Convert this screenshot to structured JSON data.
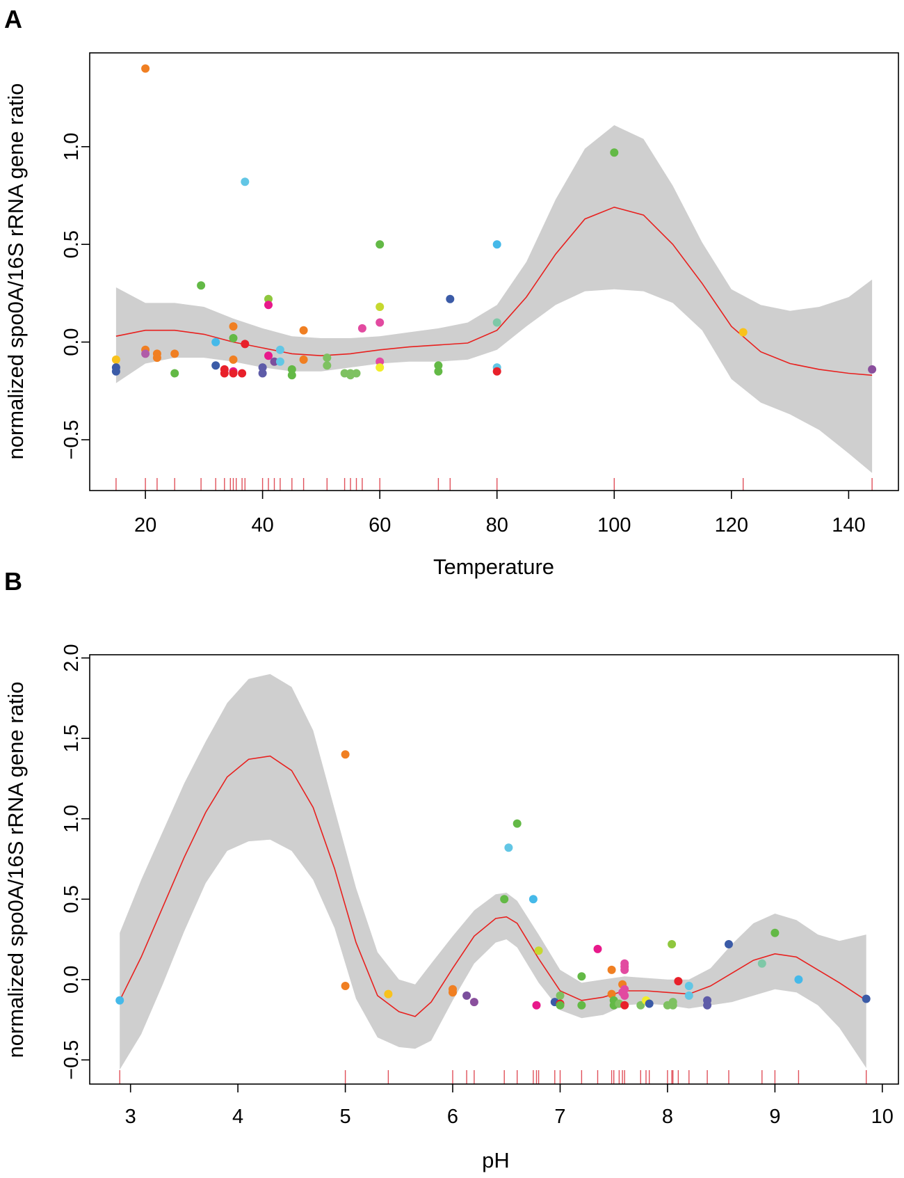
{
  "chart_data": [
    {
      "type": "scatter",
      "panel_label": "A",
      "xlabel": "Temperature",
      "ylabel": "normalized spo0A/16S rRNA gene ratio",
      "xlim": [
        10.5,
        148.5
      ],
      "ylim": [
        -0.76,
        1.48
      ],
      "x_ticks": [
        20,
        40,
        60,
        80,
        100,
        120,
        140
      ],
      "y_ticks": [
        -0.5,
        0.0,
        0.5,
        1.0
      ],
      "x_tick_labels": [
        "20",
        "40",
        "60",
        "80",
        "100",
        "120",
        "140"
      ],
      "y_tick_labels": [
        "−0.5",
        "0.0",
        "0.5",
        "1.0"
      ],
      "smooth_fit": {
        "x": [
          15,
          20,
          25,
          30,
          35,
          40,
          45,
          50,
          55,
          60,
          65,
          70,
          75,
          80,
          85,
          90,
          95,
          100,
          105,
          110,
          115,
          120,
          125,
          130,
          135,
          140,
          144
        ],
        "y": [
          0.03,
          0.06,
          0.06,
          0.04,
          0.0,
          -0.03,
          -0.06,
          -0.07,
          -0.06,
          -0.04,
          -0.025,
          -0.015,
          -0.005,
          0.06,
          0.23,
          0.45,
          0.63,
          0.69,
          0.65,
          0.5,
          0.3,
          0.08,
          -0.05,
          -0.11,
          -0.14,
          -0.16,
          -0.17
        ],
        "lower": [
          -0.21,
          -0.11,
          -0.08,
          -0.08,
          -0.1,
          -0.13,
          -0.15,
          -0.15,
          -0.13,
          -0.11,
          -0.1,
          -0.1,
          -0.09,
          -0.04,
          0.08,
          0.19,
          0.26,
          0.27,
          0.26,
          0.2,
          0.06,
          -0.19,
          -0.31,
          -0.37,
          -0.45,
          -0.57,
          -0.67
        ],
        "upper": [
          0.28,
          0.2,
          0.2,
          0.18,
          0.12,
          0.07,
          0.03,
          0.02,
          0.02,
          0.03,
          0.05,
          0.07,
          0.1,
          0.19,
          0.41,
          0.73,
          0.99,
          1.11,
          1.04,
          0.8,
          0.51,
          0.27,
          0.19,
          0.16,
          0.18,
          0.23,
          0.32
        ]
      },
      "points": [
        {
          "x": 15,
          "y": -0.09,
          "color": "#f8c21c"
        },
        {
          "x": 15,
          "y": -0.13,
          "color": "#3b5ba7"
        },
        {
          "x": 15,
          "y": -0.15,
          "color": "#3b5ba7"
        },
        {
          "x": 20,
          "y": 1.4,
          "color": "#f07f22"
        },
        {
          "x": 20,
          "y": -0.04,
          "color": "#f07f22"
        },
        {
          "x": 20,
          "y": -0.06,
          "color": "#b05ca8"
        },
        {
          "x": 22,
          "y": -0.06,
          "color": "#f07f22"
        },
        {
          "x": 22,
          "y": -0.08,
          "color": "#f07f22"
        },
        {
          "x": 25,
          "y": -0.16,
          "color": "#63b946"
        },
        {
          "x": 25,
          "y": -0.06,
          "color": "#f07f22"
        },
        {
          "x": 29.5,
          "y": 0.29,
          "color": "#63b946"
        },
        {
          "x": 32,
          "y": 0.0,
          "color": "#45b9e9"
        },
        {
          "x": 32,
          "y": -0.12,
          "color": "#3b5ba7"
        },
        {
          "x": 33.5,
          "y": -0.14,
          "color": "#e8202a"
        },
        {
          "x": 33.5,
          "y": -0.16,
          "color": "#e8202a"
        },
        {
          "x": 35,
          "y": 0.08,
          "color": "#f07f22"
        },
        {
          "x": 35,
          "y": 0.02,
          "color": "#63b946"
        },
        {
          "x": 35,
          "y": -0.09,
          "color": "#f07f22"
        },
        {
          "x": 35,
          "y": -0.15,
          "color": "#e8198b"
        },
        {
          "x": 35,
          "y": -0.16,
          "color": "#e8202a"
        },
        {
          "x": 36.5,
          "y": -0.16,
          "color": "#e8202a"
        },
        {
          "x": 37,
          "y": 0.82,
          "color": "#62c6e5"
        },
        {
          "x": 37,
          "y": -0.01,
          "color": "#e8202a"
        },
        {
          "x": 40,
          "y": -0.13,
          "color": "#5e5ca8"
        },
        {
          "x": 40,
          "y": -0.16,
          "color": "#5e5ca8"
        },
        {
          "x": 41,
          "y": 0.22,
          "color": "#8fc73e"
        },
        {
          "x": 41,
          "y": 0.19,
          "color": "#e8198b"
        },
        {
          "x": 41,
          "y": -0.07,
          "color": "#e8198b"
        },
        {
          "x": 42,
          "y": -0.1,
          "color": "#7b4f9d"
        },
        {
          "x": 43,
          "y": -0.04,
          "color": "#62c6e5"
        },
        {
          "x": 43,
          "y": -0.1,
          "color": "#62c6e5"
        },
        {
          "x": 45,
          "y": -0.14,
          "color": "#63b946"
        },
        {
          "x": 45,
          "y": -0.17,
          "color": "#63b946"
        },
        {
          "x": 47,
          "y": 0.06,
          "color": "#f07f22"
        },
        {
          "x": 47,
          "y": -0.09,
          "color": "#f07f22"
        },
        {
          "x": 51,
          "y": -0.08,
          "color": "#7ec161"
        },
        {
          "x": 51,
          "y": -0.12,
          "color": "#7ec161"
        },
        {
          "x": 54,
          "y": -0.16,
          "color": "#7ec161"
        },
        {
          "x": 55,
          "y": -0.16,
          "color": "#7ec161"
        },
        {
          "x": 55,
          "y": -0.17,
          "color": "#7ec161"
        },
        {
          "x": 56,
          "y": -0.16,
          "color": "#7ec161"
        },
        {
          "x": 57,
          "y": 0.07,
          "color": "#e24aa0"
        },
        {
          "x": 60,
          "y": 0.5,
          "color": "#63b946"
        },
        {
          "x": 60,
          "y": 0.18,
          "color": "#c6d82f"
        },
        {
          "x": 60,
          "y": 0.1,
          "color": "#e24aa0"
        },
        {
          "x": 60,
          "y": -0.1,
          "color": "#e24aa0"
        },
        {
          "x": 60,
          "y": -0.13,
          "color": "#f2ed2a"
        },
        {
          "x": 70,
          "y": -0.12,
          "color": "#63b946"
        },
        {
          "x": 70,
          "y": -0.15,
          "color": "#63b946"
        },
        {
          "x": 72,
          "y": 0.22,
          "color": "#3b5ba7"
        },
        {
          "x": 80,
          "y": 0.5,
          "color": "#45b9e9"
        },
        {
          "x": 80,
          "y": 0.1,
          "color": "#7ec8a7"
        },
        {
          "x": 80,
          "y": -0.13,
          "color": "#62c6e5"
        },
        {
          "x": 80,
          "y": -0.15,
          "color": "#e8202a"
        },
        {
          "x": 100,
          "y": 0.97,
          "color": "#63b946"
        },
        {
          "x": 122,
          "y": 0.05,
          "color": "#f8c21c"
        },
        {
          "x": 144,
          "y": -0.14,
          "color": "#8a4f9d"
        }
      ],
      "rug_x": [
        15,
        20,
        22,
        25,
        29.5,
        32,
        33.5,
        34.5,
        35,
        35.5,
        36.5,
        37,
        40,
        41,
        42,
        43,
        45,
        47,
        51,
        54,
        55,
        56,
        57,
        60,
        70,
        72,
        80,
        100,
        122,
        144
      ]
    },
    {
      "type": "scatter",
      "panel_label": "B",
      "xlabel": "pH",
      "ylabel": "normalized spo0A/16S rRNA gene ratio",
      "xlim": [
        2.62,
        10.15
      ],
      "ylim": [
        -0.65,
        2.02
      ],
      "x_ticks": [
        3,
        4,
        5,
        6,
        7,
        8,
        9,
        10
      ],
      "y_ticks": [
        -0.5,
        0.0,
        0.5,
        1.0,
        1.5,
        2.0
      ],
      "x_tick_labels": [
        "3",
        "4",
        "5",
        "6",
        "7",
        "8",
        "9",
        "10"
      ],
      "y_tick_labels": [
        "−0.5",
        "0.0",
        "0.5",
        "1.0",
        "1.5",
        "2.0"
      ],
      "smooth_fit": {
        "x": [
          2.9,
          3.1,
          3.3,
          3.5,
          3.7,
          3.9,
          4.1,
          4.3,
          4.5,
          4.7,
          4.9,
          5.1,
          5.3,
          5.5,
          5.65,
          5.8,
          6.0,
          6.2,
          6.4,
          6.5,
          6.6,
          6.8,
          7.0,
          7.2,
          7.4,
          7.6,
          7.8,
          8.0,
          8.2,
          8.4,
          8.6,
          8.8,
          9.0,
          9.2,
          9.4,
          9.6,
          9.85
        ],
        "y": [
          -0.13,
          0.14,
          0.45,
          0.76,
          1.04,
          1.26,
          1.37,
          1.39,
          1.3,
          1.07,
          0.69,
          0.23,
          -0.1,
          -0.2,
          -0.23,
          -0.14,
          0.07,
          0.27,
          0.38,
          0.39,
          0.35,
          0.13,
          -0.07,
          -0.13,
          -0.11,
          -0.07,
          -0.07,
          -0.08,
          -0.09,
          -0.04,
          0.04,
          0.12,
          0.16,
          0.14,
          0.06,
          -0.02,
          -0.13
        ],
        "lower": [
          -0.56,
          -0.34,
          -0.03,
          0.3,
          0.6,
          0.8,
          0.86,
          0.87,
          0.8,
          0.62,
          0.32,
          -0.12,
          -0.36,
          -0.42,
          -0.43,
          -0.38,
          -0.13,
          0.1,
          0.23,
          0.25,
          0.2,
          -0.02,
          -0.19,
          -0.24,
          -0.22,
          -0.16,
          -0.15,
          -0.16,
          -0.18,
          -0.16,
          -0.14,
          -0.1,
          -0.06,
          -0.08,
          -0.16,
          -0.3,
          -0.55
        ],
        "upper": [
          0.29,
          0.62,
          0.92,
          1.22,
          1.48,
          1.72,
          1.87,
          1.9,
          1.82,
          1.55,
          1.06,
          0.57,
          0.17,
          0.0,
          -0.03,
          0.1,
          0.27,
          0.43,
          0.53,
          0.54,
          0.49,
          0.28,
          0.06,
          -0.02,
          0.0,
          0.02,
          0.01,
          0.0,
          0.0,
          0.07,
          0.22,
          0.35,
          0.41,
          0.37,
          0.28,
          0.24,
          0.28
        ]
      },
      "points": [
        {
          "x": 2.9,
          "y": -0.13,
          "color": "#45b9e9"
        },
        {
          "x": 5.0,
          "y": 1.4,
          "color": "#f07f22"
        },
        {
          "x": 5.0,
          "y": -0.04,
          "color": "#f07f22"
        },
        {
          "x": 5.4,
          "y": -0.09,
          "color": "#f8c21c"
        },
        {
          "x": 6.0,
          "y": -0.06,
          "color": "#f07f22"
        },
        {
          "x": 6.0,
          "y": -0.08,
          "color": "#f07f22"
        },
        {
          "x": 6.13,
          "y": -0.1,
          "color": "#7b4f9d"
        },
        {
          "x": 6.2,
          "y": -0.14,
          "color": "#8a4f9d"
        },
        {
          "x": 6.48,
          "y": 0.5,
          "color": "#63b946"
        },
        {
          "x": 6.52,
          "y": 0.82,
          "color": "#62c6e5"
        },
        {
          "x": 6.6,
          "y": 0.97,
          "color": "#63b946"
        },
        {
          "x": 6.75,
          "y": 0.5,
          "color": "#45b9e9"
        },
        {
          "x": 6.78,
          "y": -0.16,
          "color": "#e8198b"
        },
        {
          "x": 6.8,
          "y": 0.18,
          "color": "#c6d82f"
        },
        {
          "x": 6.95,
          "y": -0.14,
          "color": "#3b5ba7"
        },
        {
          "x": 7.0,
          "y": -0.1,
          "color": "#7ec161"
        },
        {
          "x": 7.0,
          "y": -0.15,
          "color": "#e8202a"
        },
        {
          "x": 7.0,
          "y": -0.16,
          "color": "#63b946"
        },
        {
          "x": 7.2,
          "y": 0.02,
          "color": "#63b946"
        },
        {
          "x": 7.2,
          "y": -0.16,
          "color": "#63b946"
        },
        {
          "x": 7.35,
          "y": 0.19,
          "color": "#e8198b"
        },
        {
          "x": 7.48,
          "y": 0.06,
          "color": "#f07f22"
        },
        {
          "x": 7.48,
          "y": -0.09,
          "color": "#f07f22"
        },
        {
          "x": 7.5,
          "y": -0.13,
          "color": "#63b946"
        },
        {
          "x": 7.5,
          "y": -0.16,
          "color": "#63b946"
        },
        {
          "x": 7.55,
          "y": -0.15,
          "color": "#7ec161"
        },
        {
          "x": 7.58,
          "y": -0.03,
          "color": "#f07f22"
        },
        {
          "x": 7.58,
          "y": -0.08,
          "color": "#e24aa0"
        },
        {
          "x": 7.6,
          "y": 0.1,
          "color": "#e24aa0"
        },
        {
          "x": 7.6,
          "y": 0.08,
          "color": "#e24aa0"
        },
        {
          "x": 7.6,
          "y": 0.06,
          "color": "#e24aa0"
        },
        {
          "x": 7.6,
          "y": -0.06,
          "color": "#e24aa0"
        },
        {
          "x": 7.6,
          "y": -0.1,
          "color": "#e24aa0"
        },
        {
          "x": 7.6,
          "y": -0.16,
          "color": "#e8202a"
        },
        {
          "x": 7.75,
          "y": -0.16,
          "color": "#7ec161"
        },
        {
          "x": 7.8,
          "y": -0.13,
          "color": "#f2ed2a"
        },
        {
          "x": 7.83,
          "y": -0.15,
          "color": "#3b5ba7"
        },
        {
          "x": 8.0,
          "y": -0.16,
          "color": "#7ec161"
        },
        {
          "x": 8.04,
          "y": 0.22,
          "color": "#8fc73e"
        },
        {
          "x": 8.05,
          "y": -0.14,
          "color": "#7ec161"
        },
        {
          "x": 8.05,
          "y": -0.16,
          "color": "#7ec161"
        },
        {
          "x": 8.1,
          "y": -0.01,
          "color": "#e8202a"
        },
        {
          "x": 8.2,
          "y": -0.04,
          "color": "#62c6e5"
        },
        {
          "x": 8.2,
          "y": -0.1,
          "color": "#62c6e5"
        },
        {
          "x": 8.37,
          "y": -0.13,
          "color": "#5e5ca8"
        },
        {
          "x": 8.37,
          "y": -0.16,
          "color": "#5e5ca8"
        },
        {
          "x": 8.57,
          "y": 0.22,
          "color": "#3b5ba7"
        },
        {
          "x": 8.88,
          "y": 0.1,
          "color": "#7ec8a7"
        },
        {
          "x": 9.0,
          "y": 0.29,
          "color": "#63b946"
        },
        {
          "x": 9.22,
          "y": 0.0,
          "color": "#45b9e9"
        },
        {
          "x": 9.85,
          "y": -0.12,
          "color": "#3b5ba7"
        }
      ],
      "rug_x": [
        2.9,
        5.0,
        5.4,
        6.0,
        6.13,
        6.2,
        6.48,
        6.6,
        6.75,
        6.78,
        6.8,
        6.95,
        7.0,
        7.2,
        7.35,
        7.48,
        7.5,
        7.55,
        7.58,
        7.6,
        7.75,
        7.8,
        7.83,
        8.0,
        8.04,
        8.05,
        8.1,
        8.2,
        8.37,
        8.57,
        8.88,
        9.0,
        9.22,
        9.85
      ]
    }
  ]
}
